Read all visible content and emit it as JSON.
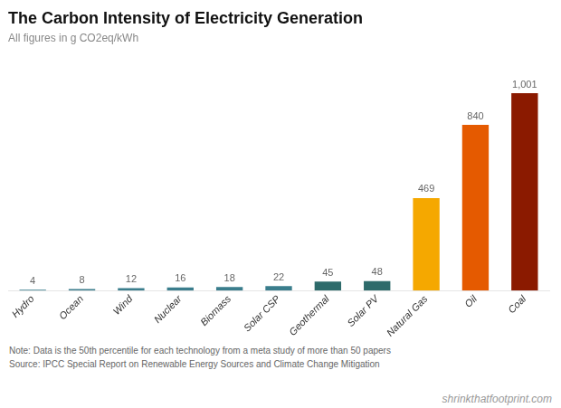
{
  "chart_data": {
    "type": "bar",
    "title": "The Carbon Intensity of Electricity Generation",
    "subtitle": "All figures in g CO2eq/kWh",
    "categories": [
      "Hydro",
      "Ocean",
      "Wind",
      "Nuclear",
      "Biomass",
      "Solar CSP",
      "Geothermal",
      "Solar PV",
      "Natural Gas",
      "Oil",
      "Coal"
    ],
    "values": [
      4,
      8,
      12,
      16,
      18,
      22,
      45,
      48,
      469,
      840,
      1001
    ],
    "value_labels": [
      "4",
      "8",
      "12",
      "16",
      "18",
      "22",
      "45",
      "48",
      "469",
      "840",
      "1,001"
    ],
    "data_labels": true,
    "colors": [
      "#3a7d8c",
      "#3a7d8c",
      "#3a7d8c",
      "#3a7d8c",
      "#3a7d8c",
      "#3a7d8c",
      "#2e6b6b",
      "#2e6b6b",
      "#f5a800",
      "#e55a00",
      "#8b1a00"
    ],
    "ylim": [
      0,
      1180
    ],
    "tick_labels": "x",
    "grid": false,
    "annotations": [
      "Note: Data is the 50th percentile for each technology from a meta study of more than 50 papers",
      "Source: IPCC Special Report on Renewable Energy Sources and Climate Change Mitigation",
      "shrinkthatfootprint.com"
    ]
  }
}
